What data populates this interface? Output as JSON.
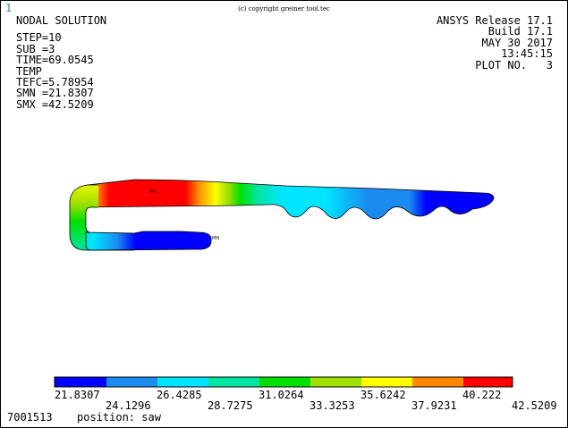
{
  "window_number": "1",
  "copyright": "(c) copyright greiner tool.tec",
  "info_left": {
    "title": "NODAL SOLUTION",
    "lines": [
      "STEP=10",
      "SUB =3",
      "TIME=69.0545",
      "TEMP",
      "TEFC=5.78954",
      "SMN =21.8307",
      "SMX =42.5209"
    ]
  },
  "info_right": {
    "lines": [
      "ANSYS Release 17.1",
      "Build 17.1",
      "MAY 30 2017",
      "13:45:15",
      "PLOT NO.   3"
    ]
  },
  "markers": {
    "max": "MX",
    "min": "MN"
  },
  "legend": {
    "colors": [
      "#0000ff",
      "#1a8cf0",
      "#00e5ff",
      "#00e5a0",
      "#00e000",
      "#a0e000",
      "#ffff00",
      "#ff8800",
      "#ff0000"
    ],
    "labels_top": [
      "21.8307",
      "26.4285",
      "31.0264",
      "35.6242",
      "40.222"
    ],
    "labels_bottom": [
      "24.1296",
      "28.7275",
      "33.3253",
      "37.9231",
      "42.5209"
    ]
  },
  "footer": {
    "id": "7001513",
    "position": "position: saw"
  }
}
